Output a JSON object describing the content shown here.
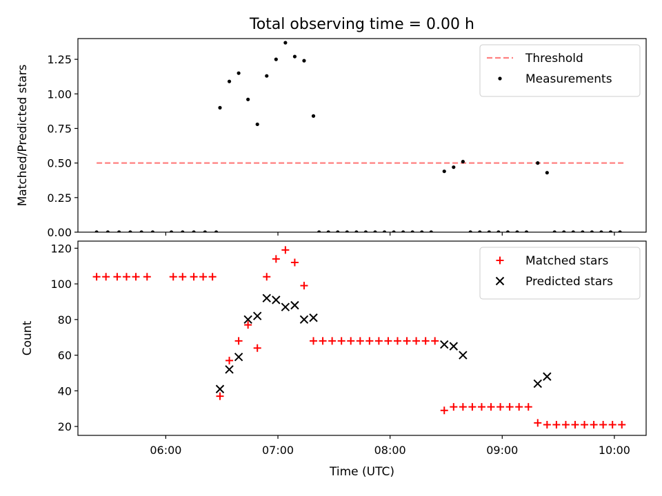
{
  "figure": {
    "title": "Total observing time = 0.00 h"
  },
  "chart_data": [
    {
      "type": "scatter",
      "ylabel": "Matched/Predicted stars",
      "ylim": [
        0,
        1.4
      ],
      "yticks": [
        0.0,
        0.25,
        0.5,
        0.75,
        1.0,
        1.25
      ],
      "ytick_labels": [
        "0.00",
        "0.25",
        "0.50",
        "0.75",
        "1.00",
        "1.25"
      ],
      "xlim": [
        "05:13",
        "10:17"
      ],
      "xticks": [
        "06:00",
        "07:00",
        "08:00",
        "09:00",
        "10:00"
      ],
      "xtick_labels": [
        "",
        "",
        "",
        "",
        ""
      ],
      "legend_position": "top-right",
      "threshold": {
        "name": "Threshold",
        "value": 0.5,
        "x_start": "05:23",
        "x_end": "10:05",
        "color": "#ff7f7f",
        "style": "dashed"
      },
      "series": [
        {
          "name": "Measurements",
          "color": "#000000",
          "marker": "dot",
          "points": [
            [
              "05:23",
              0
            ],
            [
              "05:29",
              0
            ],
            [
              "05:35",
              0
            ],
            [
              "05:41",
              0
            ],
            [
              "05:47",
              0
            ],
            [
              "05:53",
              0
            ],
            [
              "06:03",
              0
            ],
            [
              "06:09",
              0
            ],
            [
              "06:15",
              0
            ],
            [
              "06:21",
              0
            ],
            [
              "06:27",
              0
            ],
            [
              "06:29",
              0.9
            ],
            [
              "06:34",
              1.09
            ],
            [
              "06:39",
              1.15
            ],
            [
              "06:44",
              0.96
            ],
            [
              "06:49",
              0.78
            ],
            [
              "06:54",
              1.13
            ],
            [
              "06:59",
              1.25
            ],
            [
              "07:04",
              1.37
            ],
            [
              "07:09",
              1.27
            ],
            [
              "07:14",
              1.24
            ],
            [
              "07:19",
              0.84
            ],
            [
              "07:22",
              0
            ],
            [
              "07:27",
              0
            ],
            [
              "07:32",
              0
            ],
            [
              "07:37",
              0
            ],
            [
              "07:42",
              0
            ],
            [
              "07:47",
              0
            ],
            [
              "07:52",
              0
            ],
            [
              "07:57",
              0
            ],
            [
              "08:02",
              0
            ],
            [
              "08:07",
              0
            ],
            [
              "08:12",
              0
            ],
            [
              "08:17",
              0
            ],
            [
              "08:22",
              0
            ],
            [
              "08:29",
              0.44
            ],
            [
              "08:34",
              0.47
            ],
            [
              "08:39",
              0.51
            ],
            [
              "08:43",
              0
            ],
            [
              "08:48",
              0
            ],
            [
              "08:53",
              0
            ],
            [
              "08:58",
              0
            ],
            [
              "09:03",
              0
            ],
            [
              "09:08",
              0
            ],
            [
              "09:13",
              0
            ],
            [
              "09:19",
              0.5
            ],
            [
              "09:24",
              0.43
            ],
            [
              "09:28",
              0
            ],
            [
              "09:33",
              0
            ],
            [
              "09:38",
              0
            ],
            [
              "09:43",
              0
            ],
            [
              "09:48",
              0
            ],
            [
              "09:53",
              0
            ],
            [
              "09:58",
              0
            ],
            [
              "10:03",
              0
            ]
          ]
        }
      ]
    },
    {
      "type": "scatter",
      "xlabel": "Time (UTC)",
      "ylabel": "Count",
      "ylim": [
        15,
        124
      ],
      "yticks": [
        20,
        40,
        60,
        80,
        100,
        120
      ],
      "ytick_labels": [
        "20",
        "40",
        "60",
        "80",
        "100",
        "120"
      ],
      "xlim": [
        "05:13",
        "10:17"
      ],
      "xticks": [
        "06:00",
        "07:00",
        "08:00",
        "09:00",
        "10:00"
      ],
      "xtick_labels": [
        "06:00",
        "07:00",
        "08:00",
        "09:00",
        "10:00"
      ],
      "legend_position": "top-right",
      "series": [
        {
          "name": "Matched stars",
          "color": "#ff0000",
          "marker": "plus",
          "points": [
            [
              "05:23",
              104
            ],
            [
              "05:28",
              104
            ],
            [
              "05:34",
              104
            ],
            [
              "05:39",
              104
            ],
            [
              "05:44",
              104
            ],
            [
              "05:50",
              104
            ],
            [
              "06:04",
              104
            ],
            [
              "06:09",
              104
            ],
            [
              "06:15",
              104
            ],
            [
              "06:20",
              104
            ],
            [
              "06:25",
              104
            ],
            [
              "06:29",
              37
            ],
            [
              "06:34",
              57
            ],
            [
              "06:39",
              68
            ],
            [
              "06:44",
              77
            ],
            [
              "06:49",
              64
            ],
            [
              "06:54",
              104
            ],
            [
              "06:59",
              114
            ],
            [
              "07:04",
              119
            ],
            [
              "07:09",
              112
            ],
            [
              "07:14",
              99
            ],
            [
              "07:19",
              68
            ],
            [
              "07:24",
              68
            ],
            [
              "07:29",
              68
            ],
            [
              "07:34",
              68
            ],
            [
              "07:39",
              68
            ],
            [
              "07:44",
              68
            ],
            [
              "07:49",
              68
            ],
            [
              "07:54",
              68
            ],
            [
              "07:59",
              68
            ],
            [
              "08:04",
              68
            ],
            [
              "08:09",
              68
            ],
            [
              "08:14",
              68
            ],
            [
              "08:19",
              68
            ],
            [
              "08:24",
              68
            ],
            [
              "08:29",
              29
            ],
            [
              "08:34",
              31
            ],
            [
              "08:39",
              31
            ],
            [
              "08:44",
              31
            ],
            [
              "08:49",
              31
            ],
            [
              "08:54",
              31
            ],
            [
              "08:59",
              31
            ],
            [
              "09:04",
              31
            ],
            [
              "09:09",
              31
            ],
            [
              "09:14",
              31
            ],
            [
              "09:19",
              22
            ],
            [
              "09:24",
              21
            ],
            [
              "09:29",
              21
            ],
            [
              "09:34",
              21
            ],
            [
              "09:39",
              21
            ],
            [
              "09:44",
              21
            ],
            [
              "09:49",
              21
            ],
            [
              "09:54",
              21
            ],
            [
              "09:59",
              21
            ],
            [
              "10:04",
              21
            ]
          ]
        },
        {
          "name": "Predicted stars",
          "color": "#000000",
          "marker": "x",
          "points": [
            [
              "06:29",
              41
            ],
            [
              "06:34",
              52
            ],
            [
              "06:39",
              59
            ],
            [
              "06:44",
              80
            ],
            [
              "06:49",
              82
            ],
            [
              "06:54",
              92
            ],
            [
              "06:59",
              91
            ],
            [
              "07:04",
              87
            ],
            [
              "07:09",
              88
            ],
            [
              "07:14",
              80
            ],
            [
              "07:19",
              81
            ],
            [
              "08:29",
              66
            ],
            [
              "08:34",
              65
            ],
            [
              "08:39",
              60
            ],
            [
              "09:19",
              44
            ],
            [
              "09:24",
              48
            ]
          ]
        }
      ]
    }
  ]
}
